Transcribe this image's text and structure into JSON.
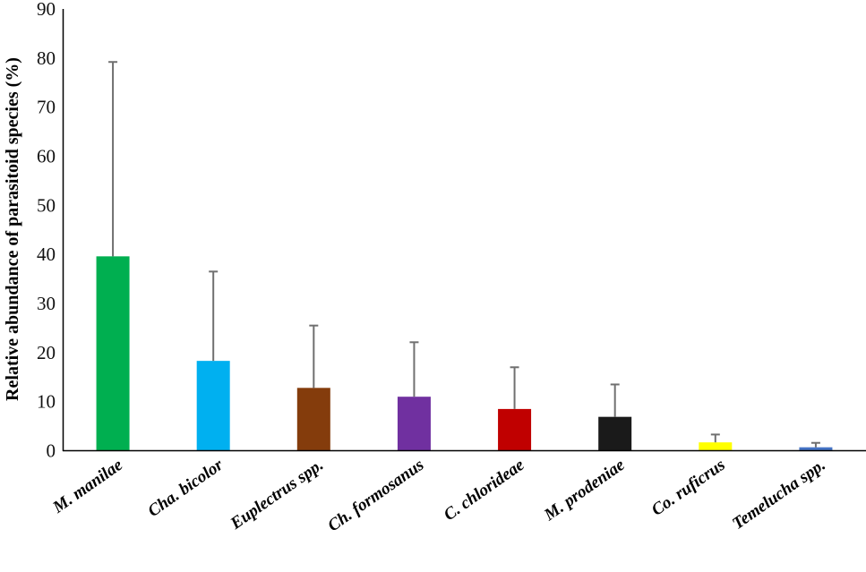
{
  "chart_data": {
    "type": "bar",
    "title": "",
    "xlabel": "",
    "ylabel": "Relative abundance of parasitoid species (%)",
    "ylim": [
      0,
      90
    ],
    "yticks": [
      "0",
      "10",
      "20",
      "30",
      "40",
      "50",
      "60",
      "70",
      "80",
      "90"
    ],
    "grid": false,
    "categories": [
      "M. manilae",
      "Cha. bicolor",
      "Euplectrus spp.",
      "Ch. formosanus",
      "C. chlorideae",
      "M. prodeniae",
      "Co. ruficrus",
      "Temelucha spp."
    ],
    "values": [
      39.6,
      18.3,
      12.8,
      11.0,
      8.5,
      6.9,
      1.7,
      0.7
    ],
    "error_upper": [
      39.6,
      18.2,
      12.7,
      11.1,
      8.5,
      6.6,
      1.6,
      0.9
    ],
    "colors": [
      "#00AF50",
      "#00B0F0",
      "#843C0C",
      "#7030A0",
      "#C00000",
      "#1A1A1A",
      "#FFFF00",
      "#4472C4"
    ],
    "error_color": "#707070"
  }
}
